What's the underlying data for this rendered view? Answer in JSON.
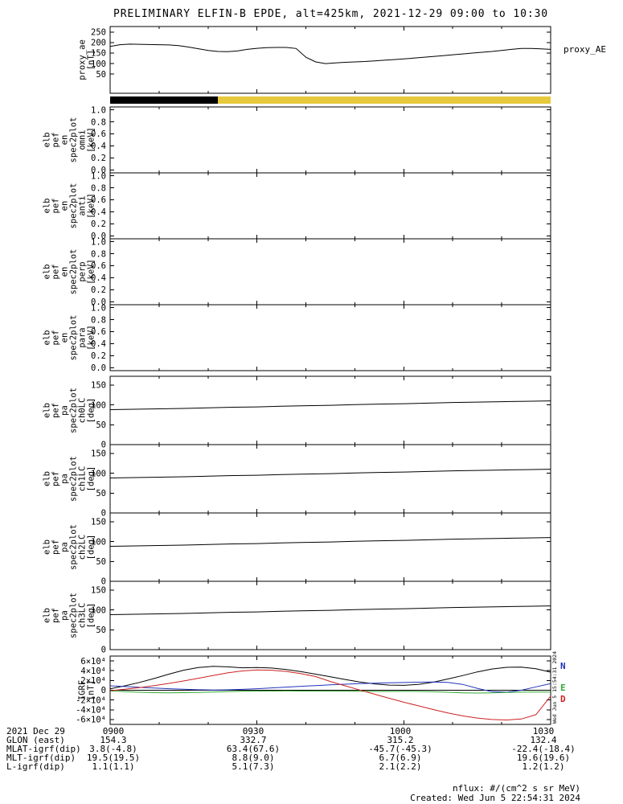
{
  "title": "PRELIMINARY ELFIN-B EPDE, alt=425km, 2021-12-29 09:00 to 10:30",
  "legends": {
    "proxy_ae": "proxy_AE",
    "igrf": [
      {
        "label": "N",
        "color": "#2233bb"
      },
      {
        "label": "E",
        "color": "#33aa33"
      },
      {
        "label": "D",
        "color": "#cc2222"
      }
    ]
  },
  "watermark": "Wed Jun 5 15:54:31 2024",
  "footer": {
    "rows": [
      {
        "label": "2021 Dec 29",
        "values": [
          "0900",
          "0930",
          "1000",
          "1030"
        ]
      },
      {
        "label": "GLON (east)",
        "values": [
          "154.3",
          "332.7",
          "315.2",
          "132.4"
        ]
      },
      {
        "label": "MLAT-igrf(dip)",
        "values": [
          "3.8(-4.8)",
          "63.4(67.6)",
          "-45.7(-45.3)",
          "-22.4(-18.4)"
        ]
      },
      {
        "label": "MLT-igrf(dip)",
        "values": [
          "19.5(19.5)",
          "8.8(9.0)",
          "6.7(6.9)",
          "19.6(19.6)"
        ]
      },
      {
        "label": "L-igrf(dip)",
        "values": [
          "1.1(1.1)",
          "5.1(7.3)",
          "2.1(2.2)",
          "1.2(1.2)"
        ]
      }
    ],
    "note_flux": "nflux: #/(cm^2 s sr MeV)",
    "note_created": "Created: Wed Jun 5 22:54:31 2024"
  },
  "chart_data": {
    "xaxis": {
      "unit": "minutes after 09:00 UT",
      "range": [
        0,
        90
      ],
      "major_ticks": [
        0,
        30,
        60,
        90
      ],
      "minor_ticks": [
        10,
        20,
        40,
        50,
        70,
        80
      ],
      "tick_labels": [
        "0900",
        "0930",
        "1000",
        "1030"
      ]
    },
    "panels": [
      {
        "id": "proxy_ae",
        "type": "line",
        "ylabel_lines": [
          "proxy_ae",
          "[nT]"
        ],
        "ylim": [
          -42,
          277
        ],
        "yticks": [
          50,
          100,
          150,
          200,
          250
        ],
        "ytick_labels": [
          "50",
          "100",
          "150",
          "200",
          "250"
        ],
        "color": "#000000",
        "x": [
          0,
          2,
          4,
          6,
          8,
          10,
          12,
          14,
          16,
          18,
          20,
          22,
          24,
          26,
          28,
          30,
          32,
          34,
          36,
          38,
          40,
          42,
          44,
          46,
          48,
          50,
          52,
          54,
          56,
          58,
          60,
          62,
          64,
          66,
          68,
          70,
          72,
          74,
          76,
          78,
          80,
          82,
          84,
          86,
          88,
          90
        ],
        "values": [
          182,
          190,
          193,
          192,
          191,
          190,
          189,
          186,
          179,
          171,
          163,
          158,
          157,
          160,
          168,
          173,
          176,
          177,
          177,
          172,
          130,
          108,
          100,
          103,
          106,
          108,
          110,
          113,
          116,
          119,
          122,
          126,
          130,
          134,
          138,
          142,
          146,
          150,
          154,
          158,
          163,
          168,
          172,
          172,
          170,
          168
        ]
      },
      {
        "id": "avail_strip",
        "type": "strip",
        "segments": [
          {
            "color": "#000000",
            "from_min": 0,
            "to_min": 22
          },
          {
            "color": "#e6c93c",
            "from_min": 22,
            "to_min": 90
          }
        ]
      },
      {
        "id": "en_omni",
        "type": "spectrogram-empty",
        "ylabel_lines": [
          "elb",
          "pef",
          "en",
          "spec2plot",
          "omni",
          "[keV]"
        ],
        "ylim": [
          -0.05,
          1.05
        ],
        "yticks": [
          0,
          0.2,
          0.4,
          0.6,
          0.8,
          1.0
        ],
        "ytick_labels": [
          "0.0",
          "0.2",
          "0.4",
          "0.6",
          "0.8",
          "1.0"
        ]
      },
      {
        "id": "en_anti",
        "type": "spectrogram-empty",
        "ylabel_lines": [
          "elb",
          "pef",
          "en",
          "spec2plot",
          "anti",
          "[keV]"
        ],
        "ylim": [
          -0.05,
          1.05
        ],
        "yticks": [
          0,
          0.2,
          0.4,
          0.6,
          0.8,
          1.0
        ],
        "ytick_labels": [
          "0.0",
          "0.2",
          "0.4",
          "0.6",
          "0.8",
          "1.0"
        ]
      },
      {
        "id": "en_perp",
        "type": "spectrogram-empty",
        "ylabel_lines": [
          "elb",
          "pef",
          "en",
          "spec2plot",
          "perp",
          "[keV]"
        ],
        "ylim": [
          -0.05,
          1.05
        ],
        "yticks": [
          0,
          0.2,
          0.4,
          0.6,
          0.8,
          1.0
        ],
        "ytick_labels": [
          "0.0",
          "0.2",
          "0.4",
          "0.6",
          "0.8",
          "1.0"
        ]
      },
      {
        "id": "en_para",
        "type": "spectrogram-empty",
        "ylabel_lines": [
          "elb",
          "pef",
          "en",
          "spec2plot",
          "para",
          "[keV]"
        ],
        "ylim": [
          -0.05,
          1.05
        ],
        "yticks": [
          0,
          0.2,
          0.4,
          0.6,
          0.8,
          1.0
        ],
        "ytick_labels": [
          "0.0",
          "0.2",
          "0.4",
          "0.6",
          "0.8",
          "1.0"
        ]
      },
      {
        "id": "pa_ch0lc",
        "type": "line",
        "ylabel_lines": [
          "elb",
          "pef",
          "pa",
          "spec2plot",
          "ch0LC",
          "[deg]"
        ],
        "ylim": [
          0,
          172
        ],
        "yticks": [
          0,
          50,
          100,
          150
        ],
        "ytick_labels": [
          "0",
          "50",
          "100",
          "150"
        ],
        "color": "#000000",
        "x": [
          0,
          5,
          10,
          15,
          20,
          25,
          30,
          35,
          40,
          45,
          50,
          55,
          60,
          65,
          70,
          75,
          80,
          85,
          90
        ],
        "values": [
          88,
          89,
          90,
          91,
          92.5,
          94,
          95,
          96.5,
          98,
          99,
          100.5,
          102,
          103,
          104.5,
          106,
          107,
          108,
          109,
          110
        ]
      },
      {
        "id": "pa_ch1lc",
        "type": "line",
        "ylabel_lines": [
          "elb",
          "pef",
          "pa",
          "spec2plot",
          "ch1LC",
          "[deg]"
        ],
        "ylim": [
          0,
          172
        ],
        "yticks": [
          0,
          50,
          100,
          150
        ],
        "ytick_labels": [
          "0",
          "50",
          "100",
          "150"
        ],
        "color": "#000000",
        "x": [
          0,
          5,
          10,
          15,
          20,
          25,
          30,
          35,
          40,
          45,
          50,
          55,
          60,
          65,
          70,
          75,
          80,
          85,
          90
        ],
        "values": [
          88,
          89,
          90,
          91,
          92.5,
          94,
          95,
          96.5,
          98,
          99,
          100.5,
          102,
          103,
          104.5,
          106,
          107,
          108,
          109,
          110
        ]
      },
      {
        "id": "pa_ch2lc",
        "type": "line",
        "ylabel_lines": [
          "elb",
          "pef",
          "pa",
          "spec2plot",
          "ch2LC",
          "[deg]"
        ],
        "ylim": [
          0,
          172
        ],
        "yticks": [
          0,
          50,
          100,
          150
        ],
        "ytick_labels": [
          "0",
          "50",
          "100",
          "150"
        ],
        "color": "#000000",
        "x": [
          0,
          5,
          10,
          15,
          20,
          25,
          30,
          35,
          40,
          45,
          50,
          55,
          60,
          65,
          70,
          75,
          80,
          85,
          90
        ],
        "values": [
          88,
          89,
          90,
          91,
          92.5,
          94,
          95,
          96.5,
          98,
          99,
          100.5,
          102,
          103,
          104.5,
          106,
          107,
          108,
          109,
          110
        ]
      },
      {
        "id": "pa_ch3lc",
        "type": "line",
        "ylabel_lines": [
          "elb",
          "pef",
          "pa",
          "spec2plot",
          "ch3LC",
          "[deg]"
        ],
        "ylim": [
          0,
          172
        ],
        "yticks": [
          0,
          50,
          100,
          150
        ],
        "ytick_labels": [
          "0",
          "50",
          "100",
          "150"
        ],
        "color": "#000000",
        "x": [
          0,
          5,
          10,
          15,
          20,
          25,
          30,
          35,
          40,
          45,
          50,
          55,
          60,
          65,
          70,
          75,
          80,
          85,
          90
        ],
        "values": [
          88,
          89,
          90,
          91,
          92.5,
          94,
          95,
          96.5,
          98,
          99,
          100.5,
          102,
          103,
          104.5,
          106,
          107,
          108,
          109,
          110
        ]
      },
      {
        "id": "igrf",
        "type": "multi-line",
        "ylabel_lines": [
          "IGRF",
          "[nT]"
        ],
        "ylim": [
          -70000,
          70000
        ],
        "zero_line": true,
        "yticks": [
          -60000,
          -40000,
          -20000,
          0,
          20000,
          40000,
          60000
        ],
        "ytick_labels": [
          "-6×10⁴",
          "-4×10⁴",
          "-2×10⁴",
          "0",
          "2×10⁴",
          "4×10⁴",
          "6×10⁴"
        ],
        "x": [
          0,
          3,
          6,
          9,
          12,
          15,
          18,
          21,
          24,
          27,
          30,
          33,
          36,
          39,
          42,
          45,
          48,
          51,
          54,
          57,
          60,
          63,
          66,
          69,
          72,
          75,
          78,
          81,
          84,
          87,
          90
        ],
        "series": [
          {
            "name": "",
            "color": "#000000",
            "values": [
              3000,
              9000,
              16000,
              24000,
              33000,
              41000,
              46500,
              49000,
              48000,
              46000,
              46500,
              45500,
              42500,
              38000,
              33000,
              27500,
              22000,
              17000,
              13000,
              10500,
              10000,
              12000,
              16500,
              23000,
              30000,
              37500,
              43500,
              47000,
              47500,
              44000,
              37000
            ]
          },
          {
            "name": "N",
            "color": "#2233bb",
            "values": [
              9000,
              7500,
              6000,
              4500,
              3200,
              2000,
              1000,
              500,
              800,
              1800,
              3200,
              4800,
              6400,
              8000,
              9500,
              11000,
              12300,
              13500,
              14500,
              15300,
              15800,
              16500,
              17000,
              16000,
              12000,
              4000,
              -3000,
              -4000,
              0,
              7000,
              13500
            ]
          },
          {
            "name": "E",
            "color": "#33aa33",
            "values": [
              -1500,
              -3000,
              -4200,
              -5000,
              -5200,
              -5000,
              -4400,
              -3600,
              -2800,
              -2200,
              -1800,
              -1600,
              -1500,
              -1600,
              -1800,
              -2000,
              -2200,
              -2300,
              -2400,
              -2400,
              -2300,
              -2500,
              -3200,
              -4200,
              -5200,
              -5800,
              -5400,
              -4600,
              -4000,
              -3700,
              -3600
            ]
          },
          {
            "name": "D",
            "color": "#cc2222",
            "values": [
              -1000,
              2000,
              5500,
              9500,
              14000,
              19000,
              24500,
              30000,
              35500,
              39500,
              41500,
              41000,
              38500,
              34000,
              28000,
              18000,
              9000,
              500,
              -8000,
              -16500,
              -24500,
              -32000,
              -39500,
              -46500,
              -52500,
              -57000,
              -60000,
              -61000,
              -59000,
              -50000,
              -12000
            ]
          }
        ]
      }
    ]
  }
}
